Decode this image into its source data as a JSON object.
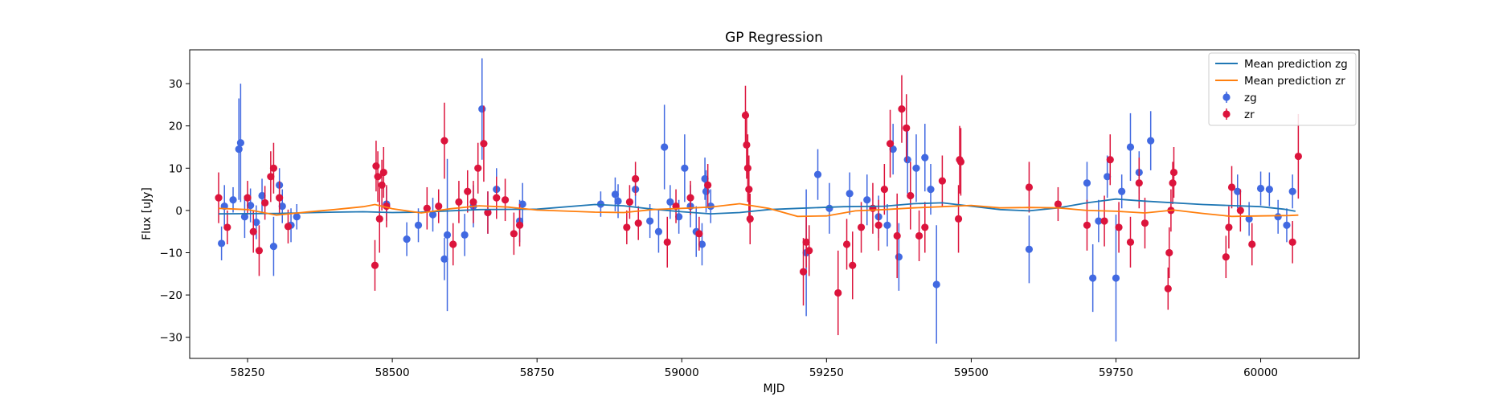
{
  "chart_data": {
    "type": "scatter",
    "title": "GP Regression",
    "xlabel": "MJD",
    "ylabel": "Flux [uJy]",
    "xlim": [
      58150,
      60170
    ],
    "ylim": [
      -35,
      38
    ],
    "xticks": [
      58250,
      58500,
      58750,
      59000,
      59250,
      59500,
      59750,
      60000
    ],
    "yticks": [
      -30,
      -20,
      -10,
      0,
      10,
      20,
      30
    ],
    "grid": false,
    "legend_position": "top-right",
    "colors": {
      "zg_line": "#1f77b4",
      "zr_line": "#ff7f0e",
      "zg_points": "#4169e1",
      "zr_points": "#dc143c"
    },
    "legend": [
      {
        "label": "Mean prediction zg",
        "kind": "line",
        "color": "#1f77b4"
      },
      {
        "label": "Mean prediction zr",
        "kind": "line",
        "color": "#ff7f0e"
      },
      {
        "label": "zg",
        "kind": "errorbar",
        "color": "#4169e1"
      },
      {
        "label": "zr",
        "kind": "errorbar",
        "color": "#dc143c"
      }
    ],
    "series": [
      {
        "name": "Mean prediction zg",
        "kind": "line",
        "color": "#1f77b4",
        "points": [
          [
            58200,
            -0.8
          ],
          [
            58300,
            -0.7
          ],
          [
            58400,
            -0.4
          ],
          [
            58450,
            -0.3
          ],
          [
            58500,
            -0.5
          ],
          [
            58550,
            -0.4
          ],
          [
            58650,
            0.2
          ],
          [
            58750,
            0.3
          ],
          [
            58850,
            1.4
          ],
          [
            58900,
            1.1
          ],
          [
            58950,
            0.3
          ],
          [
            59000,
            -0.3
          ],
          [
            59050,
            -0.8
          ],
          [
            59100,
            -0.5
          ],
          [
            59150,
            0.2
          ],
          [
            59200,
            0.5
          ],
          [
            59280,
            0.9
          ],
          [
            59350,
            1.0
          ],
          [
            59400,
            1.6
          ],
          [
            59450,
            1.8
          ],
          [
            59500,
            1.0
          ],
          [
            59550,
            0.2
          ],
          [
            59600,
            -0.1
          ],
          [
            59650,
            0.6
          ],
          [
            59700,
            1.8
          ],
          [
            59750,
            2.7
          ],
          [
            59800,
            2.2
          ],
          [
            59900,
            1.4
          ],
          [
            60000,
            0.9
          ],
          [
            60040,
            0.3
          ],
          [
            60060,
            -0.2
          ]
        ]
      },
      {
        "name": "Mean prediction zr",
        "kind": "line",
        "color": "#ff7f0e",
        "points": [
          [
            58200,
            0.5
          ],
          [
            58250,
            0.2
          ],
          [
            58300,
            -1.1
          ],
          [
            58350,
            -0.4
          ],
          [
            58400,
            0.2
          ],
          [
            58450,
            0.9
          ],
          [
            58470,
            1.4
          ],
          [
            58500,
            0.4
          ],
          [
            58550,
            -0.6
          ],
          [
            58600,
            0.4
          ],
          [
            58650,
            1.1
          ],
          [
            58700,
            0.8
          ],
          [
            58750,
            0.1
          ],
          [
            58850,
            -0.4
          ],
          [
            58900,
            -0.5
          ],
          [
            58950,
            0.2
          ],
          [
            59000,
            0.5
          ],
          [
            59050,
            0.8
          ],
          [
            59100,
            1.6
          ],
          [
            59150,
            0.5
          ],
          [
            59200,
            -1.4
          ],
          [
            59250,
            -1.3
          ],
          [
            59300,
            -0.1
          ],
          [
            59350,
            0.2
          ],
          [
            59400,
            0.6
          ],
          [
            59450,
            0.9
          ],
          [
            59500,
            1.2
          ],
          [
            59550,
            0.6
          ],
          [
            59600,
            0.7
          ],
          [
            59650,
            0.6
          ],
          [
            59700,
            0.0
          ],
          [
            59750,
            -0.2
          ],
          [
            59800,
            -0.6
          ],
          [
            59850,
            0.1
          ],
          [
            59900,
            -0.7
          ],
          [
            59950,
            -1.4
          ],
          [
            60000,
            -1.3
          ],
          [
            60050,
            -1.2
          ],
          [
            60065,
            -1.1
          ]
        ]
      },
      {
        "name": "zg",
        "kind": "errorbar",
        "color": "#4169e1",
        "points": [
          [
            58205,
            -7.8,
            4
          ],
          [
            58210,
            1.0,
            5
          ],
          [
            58225,
            2.5,
            3
          ],
          [
            58235,
            14.5,
            12
          ],
          [
            58238,
            16.0,
            14
          ],
          [
            58245,
            -1.5,
            5
          ],
          [
            58255,
            1.2,
            4
          ],
          [
            58265,
            -2.8,
            4
          ],
          [
            58275,
            3.5,
            4
          ],
          [
            58295,
            -8.5,
            7
          ],
          [
            58305,
            6.0,
            4
          ],
          [
            58310,
            1.0,
            4
          ],
          [
            58325,
            -3.5,
            4
          ],
          [
            58335,
            -1.5,
            3
          ],
          [
            58490,
            1.5,
            4
          ],
          [
            58525,
            -6.8,
            4
          ],
          [
            58545,
            -3.5,
            4
          ],
          [
            58570,
            -1.0,
            4
          ],
          [
            58590,
            -11.5,
            5
          ],
          [
            58595,
            -5.8,
            18
          ],
          [
            58625,
            -5.8,
            5
          ],
          [
            58640,
            1.0,
            5
          ],
          [
            58655,
            24.0,
            12
          ],
          [
            58665,
            -0.5,
            5
          ],
          [
            58680,
            5.0,
            5
          ],
          [
            58720,
            -2.5,
            5
          ],
          [
            58725,
            1.5,
            5
          ],
          [
            58860,
            1.5,
            3
          ],
          [
            58885,
            3.8,
            4
          ],
          [
            58890,
            2.2,
            4
          ],
          [
            58920,
            5.0,
            4
          ],
          [
            58945,
            -2.5,
            4
          ],
          [
            58960,
            -5.0,
            5
          ],
          [
            58970,
            15.0,
            10
          ],
          [
            58980,
            2.0,
            4
          ],
          [
            58995,
            -1.5,
            4
          ],
          [
            59005,
            10.0,
            8
          ],
          [
            59015,
            1.0,
            5
          ],
          [
            59025,
            -5.0,
            6
          ],
          [
            59035,
            -8.0,
            5
          ],
          [
            59040,
            7.5,
            5
          ],
          [
            59042,
            4.5,
            5
          ],
          [
            59050,
            1.0,
            4
          ],
          [
            59215,
            -10.0,
            15
          ],
          [
            59235,
            8.5,
            6
          ],
          [
            59255,
            0.5,
            6
          ],
          [
            59290,
            4.0,
            5
          ],
          [
            59320,
            2.5,
            6
          ],
          [
            59340,
            -1.5,
            5
          ],
          [
            59355,
            -3.5,
            5
          ],
          [
            59365,
            14.5,
            6
          ],
          [
            59375,
            -11.0,
            8
          ],
          [
            59390,
            12.0,
            8
          ],
          [
            59405,
            10.0,
            8
          ],
          [
            59420,
            12.5,
            8
          ],
          [
            59430,
            5.0,
            6
          ],
          [
            59440,
            -17.5,
            14
          ],
          [
            59600,
            -9.2,
            8
          ],
          [
            59700,
            6.5,
            5
          ],
          [
            59710,
            -16.0,
            8
          ],
          [
            59720,
            -2.5,
            5
          ],
          [
            59735,
            8.0,
            5
          ],
          [
            59750,
            -16.0,
            15
          ],
          [
            59760,
            4.5,
            4
          ],
          [
            59775,
            15.0,
            8
          ],
          [
            59790,
            9.0,
            5
          ],
          [
            59810,
            16.5,
            7
          ],
          [
            59960,
            4.5,
            4
          ],
          [
            59980,
            -2.0,
            4
          ],
          [
            60000,
            5.2,
            4
          ],
          [
            60015,
            5.0,
            4
          ],
          [
            60030,
            -1.5,
            4
          ],
          [
            60045,
            -3.5,
            4
          ],
          [
            60055,
            4.5,
            4
          ]
        ]
      },
      {
        "name": "zr",
        "kind": "errorbar",
        "color": "#dc143c",
        "points": [
          [
            58200,
            3.0,
            6
          ],
          [
            58215,
            -4.0,
            4
          ],
          [
            58250,
            3.0,
            4
          ],
          [
            58260,
            -5.0,
            5
          ],
          [
            58270,
            -9.5,
            6
          ],
          [
            58280,
            1.8,
            4
          ],
          [
            58290,
            8.0,
            6
          ],
          [
            58295,
            10.0,
            6
          ],
          [
            58305,
            3.0,
            4
          ],
          [
            58320,
            -3.8,
            4
          ],
          [
            58470,
            -13.0,
            6
          ],
          [
            58472,
            10.5,
            6
          ],
          [
            58475,
            8.0,
            6
          ],
          [
            58478,
            -2.0,
            8
          ],
          [
            58482,
            6.0,
            6
          ],
          [
            58485,
            9.0,
            6
          ],
          [
            58490,
            1.0,
            5
          ],
          [
            58560,
            0.5,
            5
          ],
          [
            58580,
            1.0,
            4
          ],
          [
            58590,
            16.5,
            9
          ],
          [
            58605,
            -8.0,
            5
          ],
          [
            58615,
            2.0,
            5
          ],
          [
            58630,
            4.5,
            5
          ],
          [
            58640,
            2.0,
            5
          ],
          [
            58648,
            10.0,
            6
          ],
          [
            58658,
            15.8,
            9
          ],
          [
            58665,
            -0.5,
            5
          ],
          [
            58680,
            3.0,
            5
          ],
          [
            58695,
            2.5,
            5
          ],
          [
            58710,
            -5.5,
            5
          ],
          [
            58720,
            -3.5,
            5
          ],
          [
            58905,
            -4.0,
            4
          ],
          [
            58910,
            2.0,
            4
          ],
          [
            58920,
            7.5,
            4
          ],
          [
            58925,
            -3.0,
            4
          ],
          [
            58975,
            -7.5,
            6
          ],
          [
            58990,
            1.0,
            4
          ],
          [
            59015,
            3.0,
            4
          ],
          [
            59030,
            -5.5,
            4
          ],
          [
            59045,
            6.0,
            5
          ],
          [
            59110,
            22.5,
            7
          ],
          [
            59112,
            15.5,
            8
          ],
          [
            59114,
            10.0,
            8
          ],
          [
            59116,
            5.0,
            8
          ],
          [
            59118,
            -2.0,
            6
          ],
          [
            59210,
            -14.5,
            8
          ],
          [
            59215,
            -7.5,
            6
          ],
          [
            59220,
            -9.5,
            6
          ],
          [
            59270,
            -19.5,
            10
          ],
          [
            59285,
            -8.0,
            6
          ],
          [
            59295,
            -13.0,
            8
          ],
          [
            59310,
            -4.0,
            6
          ],
          [
            59330,
            0.5,
            6
          ],
          [
            59340,
            -3.5,
            6
          ],
          [
            59350,
            5.0,
            6
          ],
          [
            59360,
            15.8,
            8
          ],
          [
            59372,
            -6.0,
            10
          ],
          [
            59380,
            24.0,
            8
          ],
          [
            59388,
            19.5,
            8
          ],
          [
            59395,
            3.5,
            8
          ],
          [
            59410,
            -6.0,
            6
          ],
          [
            59420,
            -4.0,
            6
          ],
          [
            59450,
            7.0,
            6
          ],
          [
            59478,
            -2.0,
            8
          ],
          [
            59480,
            12.0,
            8
          ],
          [
            59482,
            11.5,
            8
          ],
          [
            59600,
            5.5,
            6
          ],
          [
            59650,
            1.5,
            4
          ],
          [
            59700,
            -3.5,
            6
          ],
          [
            59730,
            -2.5,
            6
          ],
          [
            59740,
            12.0,
            6
          ],
          [
            59755,
            -4.0,
            6
          ],
          [
            59775,
            -7.5,
            6
          ],
          [
            59790,
            6.5,
            6
          ],
          [
            59800,
            -3.0,
            6
          ],
          [
            59840,
            -18.5,
            5
          ],
          [
            59842,
            -10.0,
            6
          ],
          [
            59845,
            0.0,
            5
          ],
          [
            59848,
            6.5,
            5
          ],
          [
            59850,
            9.0,
            6
          ],
          [
            59940,
            -11.0,
            5
          ],
          [
            59945,
            -4.0,
            5
          ],
          [
            59950,
            5.5,
            5
          ],
          [
            59965,
            0.0,
            5
          ],
          [
            59985,
            -8.0,
            5
          ],
          [
            60055,
            -7.5,
            5
          ],
          [
            60065,
            12.8,
            10
          ]
        ]
      }
    ]
  }
}
